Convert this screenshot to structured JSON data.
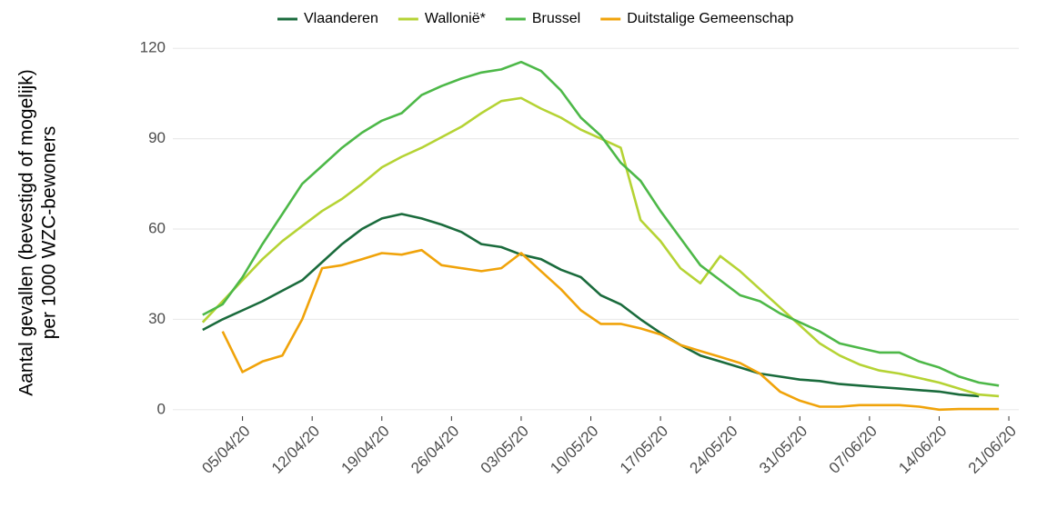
{
  "chart_data": {
    "type": "line",
    "y_label": [
      "Aantal gevallen (bevestigd of mogelijk)",
      "per 1000 WZC-bewoners"
    ],
    "x": [
      "01/04/20",
      "03/04/20",
      "05/04/20",
      "07/04/20",
      "09/04/20",
      "11/04/20",
      "13/04/20",
      "15/04/20",
      "17/04/20",
      "19/04/20",
      "21/04/20",
      "23/04/20",
      "25/04/20",
      "27/04/20",
      "29/04/20",
      "01/05/20",
      "03/05/20",
      "05/05/20",
      "07/05/20",
      "09/05/20",
      "11/05/20",
      "13/05/20",
      "15/05/20",
      "17/05/20",
      "19/05/20",
      "21/05/20",
      "23/05/20",
      "25/05/20",
      "27/05/20",
      "29/05/20",
      "31/05/20",
      "02/06/20",
      "04/06/20",
      "06/06/20",
      "08/06/20",
      "10/06/20",
      "12/06/20",
      "14/06/20",
      "16/06/20",
      "18/06/20",
      "20/06/20"
    ],
    "series": [
      {
        "name": "Vlaanderen",
        "color": "#1a6b3c",
        "values": [
          26.5,
          30,
          33,
          36,
          39.5,
          43,
          49,
          55,
          60,
          63.5,
          65,
          63.5,
          61.5,
          59,
          55,
          54,
          51.5,
          50,
          46.5,
          44,
          38,
          35,
          30,
          25.5,
          21.5,
          18,
          16,
          14,
          12,
          11,
          10,
          9.5,
          8.5,
          8,
          7.5,
          7,
          6.5,
          6,
          5,
          4.5,
          null
        ]
      },
      {
        "name": "Wallonië*",
        "color": "#b5d334",
        "values": [
          29,
          36,
          43,
          50,
          56,
          61,
          66,
          70,
          75,
          80.5,
          84,
          87,
          90.5,
          94,
          98.5,
          102.5,
          103.5,
          100,
          97,
          93,
          90,
          87,
          63,
          56,
          47,
          42,
          51,
          46,
          40,
          34,
          28,
          22,
          18,
          15,
          13,
          12,
          10.5,
          9,
          7,
          5,
          4.5
        ]
      },
      {
        "name": "Brussel",
        "color": "#4db848",
        "values": [
          31.5,
          35,
          44,
          55,
          65,
          75,
          81,
          87,
          92,
          96,
          98.5,
          104.5,
          107.5,
          110,
          112,
          113,
          115.5,
          112.5,
          106,
          97,
          91,
          82,
          76,
          66,
          57,
          48,
          43,
          38,
          36,
          32,
          29,
          26,
          22,
          20.5,
          19,
          19,
          16,
          14,
          11,
          9,
          8
        ]
      },
      {
        "name": "Duitstalige Gemeenschap",
        "color": "#f0a30a",
        "values": [
          null,
          26,
          12.5,
          16,
          18,
          30,
          47,
          48,
          50,
          52,
          51.5,
          53,
          48,
          47,
          46,
          47,
          52,
          46,
          40,
          33,
          28.5,
          28.5,
          27,
          25,
          21.5,
          19.5,
          17.5,
          15.5,
          12,
          6,
          3,
          1,
          1,
          1.5,
          1.5,
          1.5,
          1,
          0,
          0.2,
          0.2,
          0.2
        ]
      }
    ],
    "xlim": [
      "29/03/20",
      "22/06/20"
    ],
    "xticks": [
      "05/04/20",
      "12/04/20",
      "19/04/20",
      "26/04/20",
      "03/05/20",
      "10/05/20",
      "17/05/20",
      "24/05/20",
      "31/05/20",
      "07/06/20",
      "14/06/20",
      "21/06/20"
    ],
    "ylim": [
      -7,
      124
    ],
    "yticks": [
      0,
      30,
      60,
      90,
      120
    ],
    "grid": true,
    "legend": "top"
  }
}
